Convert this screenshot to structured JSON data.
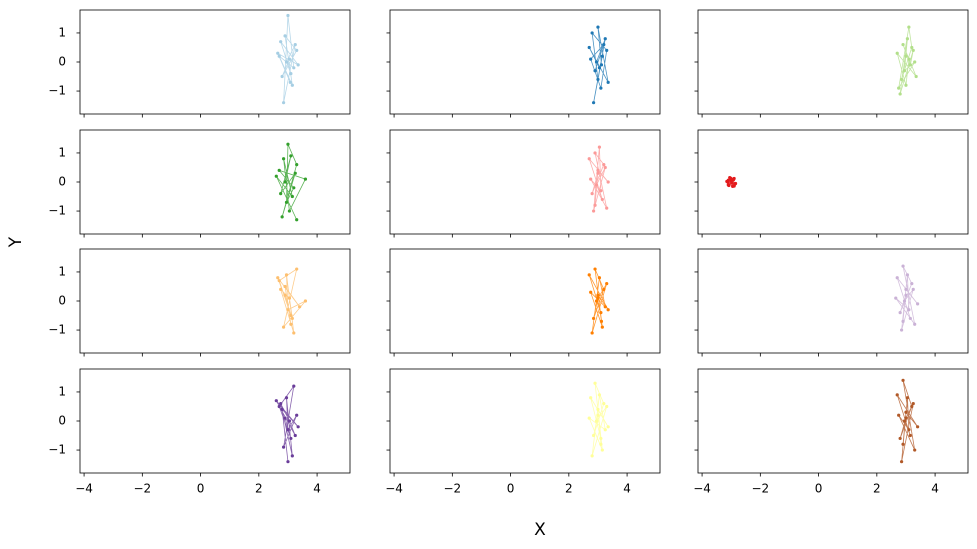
{
  "figure": {
    "xlabel": "X",
    "ylabel": "Y"
  },
  "chart_data": [
    {
      "type": "line",
      "color": "#a6cee3",
      "xlim": [
        -4.14,
        5.13
      ],
      "ylim": [
        -1.79,
        1.79
      ],
      "xticks": [
        -4,
        -2,
        0,
        2,
        4
      ],
      "yticks": [
        {
          "value": -1,
          "label": "−1"
        },
        0,
        1
      ],
      "x": [
        3.05,
        2.8,
        3.3,
        2.9,
        3.15,
        2.7,
        3.2,
        3.0,
        2.85,
        3.25,
        2.95,
        3.1,
        2.75,
        3.35,
        2.65,
        3.08
      ],
      "values": [
        0.1,
        -0.5,
        0.4,
        0.9,
        -0.8,
        0.2,
        -0.2,
        1.6,
        -1.4,
        0.6,
        0.0,
        -0.4,
        0.7,
        -0.1,
        0.3,
        -0.7
      ]
    },
    {
      "type": "line",
      "color": "#1f78b4",
      "xlim": [
        -4.14,
        5.13
      ],
      "ylim": [
        -1.79,
        1.79
      ],
      "xticks": [
        -4,
        -2,
        0,
        2,
        4
      ],
      "yticks": [
        -1,
        0,
        1
      ],
      "x": [
        2.9,
        3.2,
        2.75,
        3.1,
        3.3,
        2.8,
        3.0,
        3.15,
        2.85,
        3.25,
        2.95,
        3.05,
        2.7,
        3.35,
        3.0,
        3.12
      ],
      "values": [
        -0.3,
        0.6,
        0.1,
        -0.9,
        0.4,
        1.0,
        -0.6,
        0.2,
        -1.4,
        0.8,
        0.0,
        -0.2,
        0.5,
        -0.7,
        1.2,
        -0.1
      ]
    },
    {
      "type": "line",
      "color": "#b2df8a",
      "xlim": [
        -4.14,
        5.13
      ],
      "ylim": [
        -1.79,
        1.79
      ],
      "xticks": [
        -4,
        -2,
        0,
        2,
        4
      ],
      "yticks": [
        -1,
        0,
        1
      ],
      "x": [
        3.0,
        2.85,
        3.2,
        3.1,
        2.75,
        3.3,
        2.95,
        3.05,
        2.8,
        3.25,
        3.15,
        2.9,
        3.35,
        2.7,
        3.0,
        3.1
      ],
      "values": [
        0.2,
        -0.6,
        0.5,
        1.2,
        -0.9,
        0.0,
        -0.3,
        0.8,
        -1.1,
        0.4,
        -0.1,
        0.6,
        -0.5,
        0.3,
        -0.8,
        0.1
      ]
    },
    {
      "type": "line",
      "color": "#33a02c",
      "xlim": [
        -4.14,
        5.13
      ],
      "ylim": [
        -1.79,
        1.79
      ],
      "xticks": [
        -4,
        -2,
        0,
        2,
        4
      ],
      "yticks": [
        {
          "value": -1,
          "label": "−1"
        },
        0,
        1
      ],
      "x": [
        2.9,
        3.1,
        2.75,
        3.25,
        2.8,
        3.3,
        3.0,
        2.95,
        3.2,
        2.7,
        3.6,
        3.05,
        2.85,
        3.15,
        2.6,
        3.3
      ],
      "values": [
        0.0,
        0.9,
        -0.4,
        0.3,
        -1.2,
        0.6,
        1.3,
        -0.7,
        -0.2,
        0.4,
        0.1,
        -1.0,
        0.8,
        -0.5,
        0.2,
        -1.3
      ]
    },
    {
      "type": "line",
      "color": "#fb9a99",
      "xlim": [
        -4.14,
        5.13
      ],
      "ylim": [
        -1.79,
        1.79
      ],
      "xticks": [
        -4,
        -2,
        0,
        2,
        4
      ],
      "yticks": [
        -1,
        0,
        1
      ],
      "x": [
        3.0,
        2.8,
        3.2,
        2.9,
        3.3,
        2.75,
        3.1,
        3.05,
        2.85,
        3.25,
        2.95,
        3.15,
        2.7,
        3.35,
        3.0,
        2.9
      ],
      "values": [
        0.3,
        -0.4,
        0.6,
        1.0,
        -0.9,
        0.1,
        -0.3,
        1.2,
        -1.0,
        0.5,
        -0.1,
        -0.6,
        0.8,
        0.0,
        0.4,
        -0.8
      ]
    },
    {
      "type": "line",
      "color": "#e31a1c",
      "xlim": [
        -4.14,
        5.13
      ],
      "ylim": [
        -1.79,
        1.79
      ],
      "xticks": [
        -4,
        -2,
        0,
        2,
        4
      ],
      "yticks": [
        -1,
        0,
        1
      ],
      "x": [
        -3.0,
        -3.1,
        -2.9,
        -3.05,
        -2.95,
        -3.15,
        -2.85,
        -3.0,
        -3.08,
        -2.92,
        -3.12,
        -2.88,
        -3.02,
        -2.98,
        -3.1,
        -2.9
      ],
      "values": [
        0.05,
        -0.1,
        0.12,
        0.15,
        -0.15,
        0.02,
        -0.05,
        0.1,
        -0.12,
        0.08,
        0.0,
        -0.08,
        0.13,
        -0.03,
        0.06,
        -0.14
      ]
    },
    {
      "type": "line",
      "color": "#fdbf6f",
      "xlim": [
        -4.14,
        5.13
      ],
      "ylim": [
        -1.79,
        1.79
      ],
      "xticks": [
        -4,
        -2,
        0,
        2,
        4
      ],
      "yticks": [
        {
          "value": -1,
          "label": "−1"
        },
        0,
        1
      ],
      "x": [
        2.9,
        3.1,
        2.7,
        3.3,
        2.85,
        3.6,
        3.0,
        2.95,
        3.2,
        2.75,
        3.05,
        3.15,
        2.65,
        3.4,
        2.9,
        3.1
      ],
      "values": [
        0.2,
        -0.5,
        0.7,
        1.1,
        -0.9,
        0.0,
        -0.3,
        0.9,
        -1.1,
        0.4,
        0.1,
        -0.6,
        0.8,
        -0.2,
        0.5,
        -0.8
      ]
    },
    {
      "type": "line",
      "color": "#ff7f00",
      "xlim": [
        -4.14,
        5.13
      ],
      "ylim": [
        -1.79,
        1.79
      ],
      "xticks": [
        -4,
        -2,
        0,
        2,
        4
      ],
      "yticks": [
        -1,
        0,
        1
      ],
      "x": [
        3.0,
        2.85,
        3.2,
        2.9,
        3.15,
        2.75,
        3.25,
        3.05,
        2.8,
        3.3,
        2.95,
        3.1,
        2.7,
        3.35,
        3.0,
        3.12
      ],
      "values": [
        0.1,
        -0.6,
        0.4,
        1.1,
        -0.9,
        0.3,
        -0.2,
        0.8,
        -1.1,
        0.6,
        0.0,
        -0.4,
        0.9,
        -0.3,
        0.2,
        -0.7
      ]
    },
    {
      "type": "line",
      "color": "#cab2d6",
      "xlim": [
        -4.14,
        5.13
      ],
      "ylim": [
        -1.79,
        1.79
      ],
      "xticks": [
        -4,
        -2,
        0,
        2,
        4
      ],
      "yticks": [
        -1,
        0,
        1
      ],
      "x": [
        3.0,
        2.8,
        3.2,
        2.9,
        3.3,
        2.65,
        3.1,
        3.05,
        2.85,
        3.25,
        2.95,
        3.15,
        2.7,
        3.4,
        3.0,
        2.9
      ],
      "values": [
        0.2,
        -0.4,
        0.6,
        1.2,
        -0.8,
        0.1,
        -0.3,
        0.9,
        -1.0,
        0.4,
        0.0,
        -0.6,
        0.8,
        -0.1,
        0.4,
        -0.7
      ]
    },
    {
      "type": "line",
      "color": "#6a3d9a",
      "xlim": [
        -4.14,
        5.13
      ],
      "ylim": [
        -1.79,
        1.79
      ],
      "xticks": [
        {
          "value": -4,
          "label": "−4"
        },
        {
          "value": -2,
          "label": "−2"
        },
        0,
        2,
        4
      ],
      "yticks": [
        {
          "value": -1,
          "label": "−1"
        },
        0,
        1
      ],
      "x": [
        2.9,
        3.1,
        2.7,
        3.2,
        2.85,
        3.3,
        3.0,
        2.95,
        3.15,
        2.75,
        3.05,
        3.25,
        2.6,
        3.35,
        2.8,
        3.0
      ],
      "values": [
        0.1,
        -0.6,
        0.5,
        1.2,
        -0.9,
        0.2,
        -0.3,
        0.8,
        -1.2,
        0.6,
        0.0,
        -0.5,
        0.7,
        -0.2,
        0.4,
        -1.4
      ]
    },
    {
      "type": "line",
      "color": "#ffff99",
      "xlim": [
        -4.14,
        5.13
      ],
      "ylim": [
        -1.79,
        1.79
      ],
      "xticks": [
        {
          "value": -4,
          "label": "−4"
        },
        {
          "value": -2,
          "label": "−2"
        },
        0,
        2,
        4
      ],
      "yticks": [
        -1,
        0,
        1
      ],
      "x": [
        3.0,
        2.85,
        3.2,
        2.9,
        3.15,
        2.7,
        3.25,
        3.05,
        2.8,
        3.3,
        2.95,
        3.1,
        2.75,
        3.35,
        3.0,
        3.1
      ],
      "values": [
        0.2,
        -0.5,
        0.6,
        1.3,
        -1.0,
        0.1,
        -0.3,
        0.9,
        -1.2,
        0.5,
        0.0,
        -0.6,
        0.8,
        -0.2,
        0.4,
        -0.8
      ]
    },
    {
      "type": "line",
      "color": "#b15928",
      "xlim": [
        -4.14,
        5.13
      ],
      "ylim": [
        -1.79,
        1.79
      ],
      "xticks": [
        {
          "value": -4,
          "label": "−4"
        },
        {
          "value": -2,
          "label": "−2"
        },
        0,
        2,
        4
      ],
      "yticks": [
        -1,
        0,
        1
      ],
      "x": [
        3.0,
        2.8,
        3.2,
        2.9,
        3.3,
        2.75,
        3.1,
        3.05,
        2.85,
        3.25,
        2.95,
        3.15,
        2.7,
        3.4,
        3.0,
        2.9
      ],
      "values": [
        0.1,
        -0.6,
        0.5,
        1.4,
        -1.0,
        0.2,
        -0.3,
        0.8,
        -1.4,
        0.6,
        0.0,
        -0.5,
        0.9,
        -0.2,
        0.3,
        -0.8
      ]
    }
  ]
}
